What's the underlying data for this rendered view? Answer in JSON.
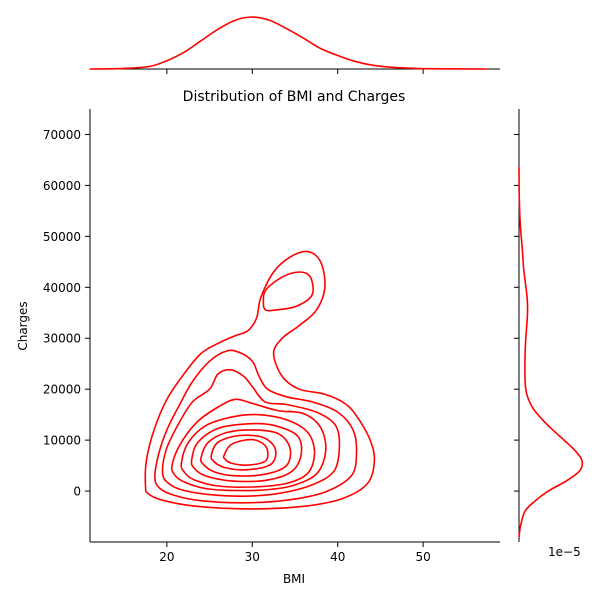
{
  "colors": {
    "line": "#ff0000",
    "axis": "#000000",
    "background": "#ffffff"
  },
  "chart_data": {
    "type": "contour",
    "title": "Distribution of BMI and Charges",
    "xlabel": "BMI",
    "ylabel": "Charges",
    "xlim": [
      11,
      59
    ],
    "ylim": [
      -10000,
      75000
    ],
    "x_ticks": [
      20,
      30,
      40,
      50
    ],
    "y_ticks": [
      0,
      10000,
      20000,
      30000,
      40000,
      50000,
      60000,
      70000
    ],
    "marginal_y_offset_label": "1e−5",
    "grid": false,
    "legend": "none",
    "joint_kde_contours": [
      {
        "level": 1,
        "points": [
          [
            17.5,
            1000
          ],
          [
            17.6,
            6000
          ],
          [
            18.5,
            12000
          ],
          [
            20,
            18000
          ],
          [
            22,
            23000
          ],
          [
            24,
            27000
          ],
          [
            26,
            29000
          ],
          [
            28,
            30500
          ],
          [
            29.5,
            31500
          ],
          [
            30.5,
            34000
          ],
          [
            31,
            38000
          ],
          [
            32.5,
            43000
          ],
          [
            34.5,
            46000
          ],
          [
            36.5,
            47000
          ],
          [
            38,
            45000
          ],
          [
            38.5,
            40000
          ],
          [
            37.5,
            35500
          ],
          [
            35.5,
            32500
          ],
          [
            33.5,
            30000
          ],
          [
            32.5,
            27000
          ],
          [
            33.5,
            22500
          ],
          [
            35.5,
            20000
          ],
          [
            38.5,
            19000
          ],
          [
            41,
            17000
          ],
          [
            42.5,
            14000
          ],
          [
            43.8,
            10000
          ],
          [
            44.3,
            6000
          ],
          [
            43.5,
            1500
          ],
          [
            40.5,
            -1500
          ],
          [
            36,
            -3000
          ],
          [
            30,
            -3500
          ],
          [
            23.5,
            -3000
          ],
          [
            19.5,
            -1800
          ],
          [
            17.8,
            -500
          ]
        ]
      },
      {
        "level": 2,
        "points": [
          [
            18.6,
            2500
          ],
          [
            19,
            7000
          ],
          [
            20,
            12000
          ],
          [
            21.5,
            17000
          ],
          [
            23,
            21500
          ],
          [
            25,
            25500
          ],
          [
            27,
            27500
          ],
          [
            28.5,
            27200
          ],
          [
            30,
            25500
          ],
          [
            30.8,
            22500
          ],
          [
            31.8,
            20000
          ],
          [
            34,
            18500
          ],
          [
            37,
            17500
          ],
          [
            40,
            15500
          ],
          [
            41.8,
            12000
          ],
          [
            42.2,
            7500
          ],
          [
            41.6,
            3000
          ],
          [
            38.5,
            -200
          ],
          [
            34,
            -1800
          ],
          [
            29,
            -2300
          ],
          [
            24,
            -1900
          ],
          [
            20.8,
            -800
          ],
          [
            19.2,
            500
          ]
        ]
      },
      {
        "level": 3,
        "points": [
          [
            19.5,
            3500
          ],
          [
            19.9,
            8000
          ],
          [
            21.3,
            13000
          ],
          [
            23,
            17500
          ],
          [
            25,
            20000
          ],
          [
            26,
            23000
          ],
          [
            27.5,
            23800
          ],
          [
            29,
            22500
          ],
          [
            30,
            20500
          ],
          [
            31.5,
            17500
          ],
          [
            34,
            17000
          ],
          [
            37.5,
            15500
          ],
          [
            39.7,
            13000
          ],
          [
            40.2,
            9000
          ],
          [
            39.6,
            4000
          ],
          [
            37,
            1200
          ],
          [
            33,
            -500
          ],
          [
            29,
            -1000
          ],
          [
            25,
            -700
          ],
          [
            21.8,
            200
          ],
          [
            20.2,
            1500
          ]
        ]
      },
      {
        "level": 4,
        "points": [
          [
            20.6,
            5000
          ],
          [
            21.5,
            9000
          ],
          [
            23.5,
            13500
          ],
          [
            26,
            16500
          ],
          [
            28,
            18000
          ],
          [
            30,
            17200
          ],
          [
            33,
            15800
          ],
          [
            36,
            15200
          ],
          [
            38,
            12500
          ],
          [
            38.6,
            8000
          ],
          [
            37.6,
            3500
          ],
          [
            35,
            1200
          ],
          [
            32,
            300
          ],
          [
            28,
            100
          ],
          [
            24.5,
            500
          ],
          [
            22,
            1800
          ],
          [
            20.9,
            3200
          ]
        ]
      },
      {
        "level": 5,
        "points": [
          [
            21.7,
            5500
          ],
          [
            22.5,
            9500
          ],
          [
            24.5,
            12800
          ],
          [
            27.5,
            14500
          ],
          [
            30.5,
            15000
          ],
          [
            34,
            14000
          ],
          [
            36.5,
            11500
          ],
          [
            37.3,
            7500
          ],
          [
            36.5,
            3500
          ],
          [
            34,
            1500
          ],
          [
            30,
            800
          ],
          [
            26,
            1000
          ],
          [
            23.2,
            2200
          ],
          [
            22,
            3800
          ]
        ]
      },
      {
        "level": 6,
        "points": [
          [
            22.9,
            6000
          ],
          [
            23.6,
            9500
          ],
          [
            26,
            12300
          ],
          [
            29.5,
            13200
          ],
          [
            32.5,
            12900
          ],
          [
            35.3,
            10800
          ],
          [
            35.7,
            7000
          ],
          [
            34.5,
            3700
          ],
          [
            31.5,
            2100
          ],
          [
            27.5,
            2000
          ],
          [
            24.5,
            3000
          ],
          [
            23.2,
            4500
          ]
        ]
      },
      {
        "level": 7,
        "points": [
          [
            24,
            6500
          ],
          [
            24.8,
            9500
          ],
          [
            27,
            11500
          ],
          [
            30,
            12000
          ],
          [
            33,
            11300
          ],
          [
            34.4,
            8500
          ],
          [
            34,
            5000
          ],
          [
            31.5,
            3300
          ],
          [
            28,
            3000
          ],
          [
            25.5,
            3800
          ],
          [
            24.3,
            5200
          ]
        ]
      },
      {
        "level": 8,
        "points": [
          [
            25.2,
            7000
          ],
          [
            26,
            9600
          ],
          [
            28.5,
            10900
          ],
          [
            31.3,
            10500
          ],
          [
            32.7,
            8200
          ],
          [
            32.2,
            5300
          ],
          [
            29.5,
            4200
          ],
          [
            26.8,
            4600
          ],
          [
            25.5,
            5800
          ]
        ]
      },
      {
        "level": 9,
        "points": [
          [
            26.7,
            7000
          ],
          [
            27.6,
            9200
          ],
          [
            30,
            10100
          ],
          [
            31.6,
            8700
          ],
          [
            31.6,
            6000
          ],
          [
            29.5,
            5100
          ],
          [
            27.5,
            5500
          ],
          [
            26.8,
            6300
          ]
        ]
      },
      {
        "level": 10,
        "points": [
          [
            31.3,
            37000
          ],
          [
            31.6,
            39500
          ],
          [
            33.5,
            42000
          ],
          [
            35.5,
            43000
          ],
          [
            36.8,
            42000
          ],
          [
            37,
            38500
          ],
          [
            35.2,
            36300
          ],
          [
            33,
            35600
          ],
          [
            31.6,
            35500
          ]
        ]
      }
    ],
    "marginal_x_density": [
      [
        11,
        0
      ],
      [
        15,
        0.1
      ],
      [
        18,
        0.4
      ],
      [
        20,
        1.3
      ],
      [
        22,
        2.6
      ],
      [
        24,
        4.4
      ],
      [
        26,
        6.2
      ],
      [
        28,
        7.6
      ],
      [
        30,
        8.1
      ],
      [
        32,
        7.6
      ],
      [
        34,
        6.3
      ],
      [
        36,
        4.8
      ],
      [
        38,
        3.2
      ],
      [
        40,
        2.1
      ],
      [
        42,
        1.2
      ],
      [
        44,
        0.6
      ],
      [
        46,
        0.3
      ],
      [
        48,
        0.15
      ],
      [
        50,
        0.05
      ],
      [
        55,
        0.01
      ],
      [
        57.5,
        0
      ]
    ],
    "marginal_y_density": [
      [
        -9000,
        0.05
      ],
      [
        -7000,
        0.3
      ],
      [
        -4000,
        1.3
      ],
      [
        -2000,
        3.5
      ],
      [
        0,
        6.5
      ],
      [
        2000,
        10.5
      ],
      [
        4000,
        13.5
      ],
      [
        6000,
        14.0
      ],
      [
        8000,
        12.4
      ],
      [
        10000,
        10.0
      ],
      [
        12000,
        7.5
      ],
      [
        14000,
        5.2
      ],
      [
        16000,
        3.3
      ],
      [
        18000,
        2.1
      ],
      [
        20000,
        1.5
      ],
      [
        24000,
        1.3
      ],
      [
        28000,
        1.4
      ],
      [
        31000,
        1.6
      ],
      [
        35000,
        1.9
      ],
      [
        38000,
        1.8
      ],
      [
        41000,
        1.4
      ],
      [
        44000,
        1.0
      ],
      [
        48000,
        0.7
      ],
      [
        52000,
        0.3
      ],
      [
        56000,
        0.1
      ],
      [
        60000,
        0.03
      ],
      [
        63500,
        0
      ]
    ]
  }
}
